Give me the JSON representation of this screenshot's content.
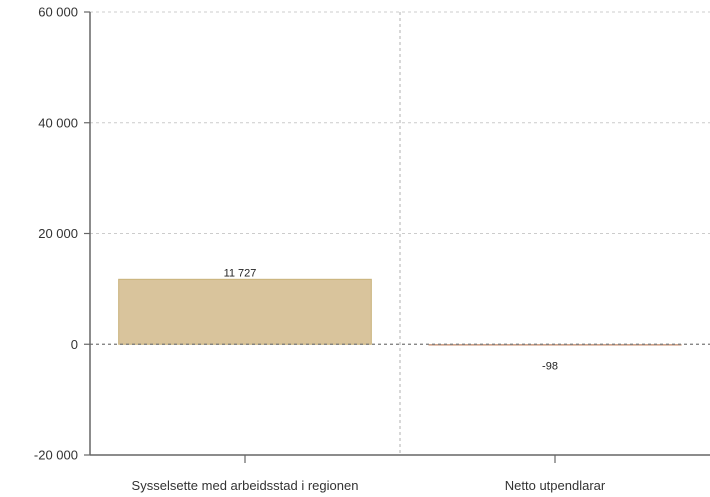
{
  "chart_data": {
    "type": "bar",
    "categories": [
      "Sysselsette med arbeidsstad i regionen",
      "Netto utpendlarar"
    ],
    "values": [
      11727,
      -98
    ],
    "data_labels": [
      "11 727",
      "-98"
    ],
    "title": "",
    "xlabel": "",
    "ylabel": "",
    "ylim": [
      -20000,
      60000
    ],
    "yticks": [
      {
        "value": 60000,
        "label": "60 000"
      },
      {
        "value": 40000,
        "label": "40 000"
      },
      {
        "value": 20000,
        "label": "20 000"
      },
      {
        "value": 0,
        "label": "0"
      },
      {
        "value": -20000,
        "label": "-20 000"
      }
    ],
    "grid": true,
    "legend": "none",
    "colors": {
      "bar_fill": "#d9c49c",
      "bar_stroke": "#c9b27a",
      "negative_stroke": "#c48a6a",
      "grid": "#cccccc",
      "axis": "#666666"
    }
  }
}
